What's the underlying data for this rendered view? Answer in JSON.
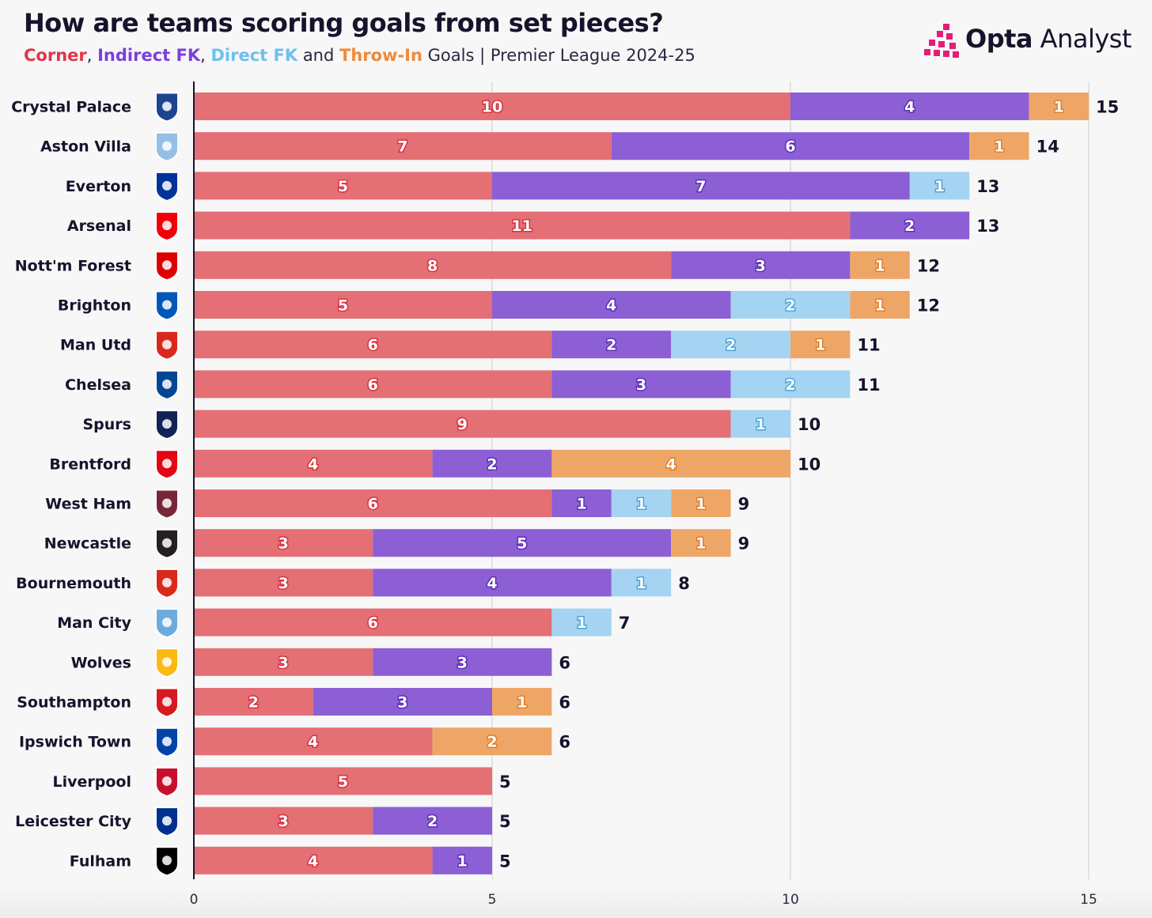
{
  "header": {
    "title": "How are teams scoring goals from set pieces?",
    "subtitle_sep1": ", ",
    "subtitle_sep2": ", ",
    "subtitle_and": " and ",
    "subtitle_rest": " Goals | Premier League 2024-25"
  },
  "logo": {
    "brand_bold": "Opta",
    "brand_light": " Analyst",
    "icon": "opta-analyst-logo-icon"
  },
  "colors": {
    "corner": "#e46f74",
    "indirect_fk": "#8c5fd5",
    "direct_fk": "#a4d4f1",
    "throw_in": "#eea666",
    "corner_text": "#e0364a",
    "indirect_fk_text": "#7b3fe0",
    "direct_fk_text": "#6cc0ec",
    "throw_in_text": "#ee8a3b",
    "label_corner": "#d83242",
    "label_indirect": "#5b2fb5",
    "label_direct": "#4aa3d8",
    "label_throw": "#e07d2b"
  },
  "chart_data": {
    "type": "bar",
    "orientation": "horizontal",
    "stacked": true,
    "title": "How are teams scoring goals from set pieces?",
    "xlabel": "",
    "ylabel": "",
    "xlim": [
      0,
      15
    ],
    "xticks": [
      0,
      5,
      10,
      15
    ],
    "grid": true,
    "categories": [
      "Crystal Palace",
      "Aston Villa",
      "Everton",
      "Arsenal",
      "Nott'm Forest",
      "Brighton",
      "Man Utd",
      "Chelsea",
      "Spurs",
      "Brentford",
      "West Ham",
      "Newcastle",
      "Bournemouth",
      "Man City",
      "Wolves",
      "Southampton",
      "Ipswich Town",
      "Liverpool",
      "Leicester City",
      "Fulham"
    ],
    "series": [
      {
        "name": "Corner",
        "values": [
          10,
          7,
          5,
          11,
          8,
          5,
          6,
          6,
          9,
          4,
          6,
          3,
          3,
          6,
          3,
          2,
          4,
          5,
          3,
          4
        ]
      },
      {
        "name": "Indirect FK",
        "values": [
          4,
          6,
          7,
          2,
          3,
          4,
          2,
          3,
          0,
          2,
          1,
          5,
          4,
          0,
          3,
          3,
          0,
          0,
          2,
          1
        ]
      },
      {
        "name": "Direct FK",
        "values": [
          0,
          0,
          1,
          0,
          0,
          2,
          2,
          2,
          1,
          0,
          1,
          0,
          1,
          1,
          0,
          0,
          0,
          0,
          0,
          0
        ]
      },
      {
        "name": "Throw-In",
        "values": [
          1,
          1,
          0,
          0,
          1,
          1,
          1,
          0,
          0,
          4,
          1,
          1,
          0,
          0,
          0,
          1,
          2,
          0,
          0,
          0
        ]
      }
    ],
    "totals": [
      15,
      14,
      13,
      13,
      12,
      12,
      11,
      11,
      10,
      10,
      9,
      9,
      8,
      7,
      6,
      6,
      6,
      5,
      5,
      5
    ],
    "team_icons": [
      "crystal-palace-crest-icon",
      "aston-villa-crest-icon",
      "everton-crest-icon",
      "arsenal-crest-icon",
      "nottm-forest-crest-icon",
      "brighton-crest-icon",
      "man-utd-crest-icon",
      "chelsea-crest-icon",
      "spurs-crest-icon",
      "brentford-crest-icon",
      "west-ham-crest-icon",
      "newcastle-crest-icon",
      "bournemouth-crest-icon",
      "man-city-crest-icon",
      "wolves-crest-icon",
      "southampton-crest-icon",
      "ipswich-town-crest-icon",
      "liverpool-crest-icon",
      "leicester-city-crest-icon",
      "fulham-crest-icon"
    ],
    "crest_colors": [
      "#1b458f",
      "#95bfe5",
      "#003399",
      "#ef0107",
      "#dd0000",
      "#0057b8",
      "#da291c",
      "#034694",
      "#132257",
      "#e30613",
      "#7a263a",
      "#241f20",
      "#da291c",
      "#6cabdd",
      "#fdb913",
      "#d71920",
      "#0044a9",
      "#c8102e",
      "#003090",
      "#000000"
    ]
  }
}
